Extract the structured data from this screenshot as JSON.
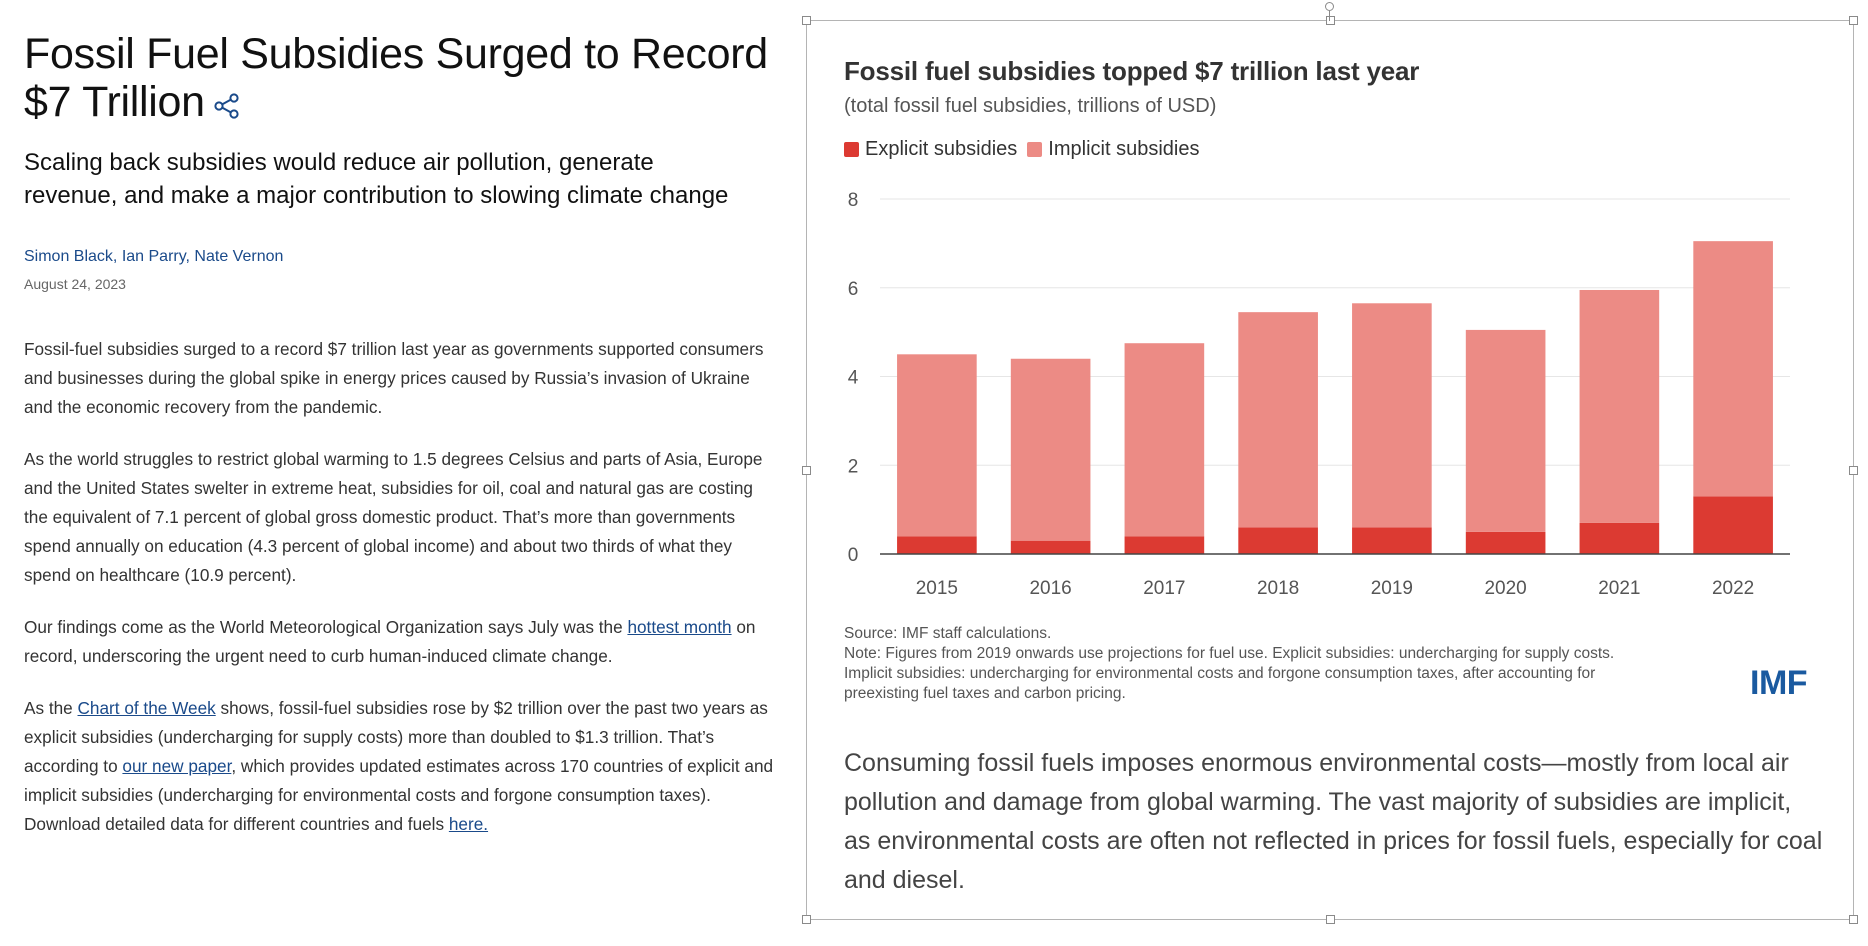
{
  "article": {
    "title": "Fossil Fuel Subsidies Surged to Record $7 Trillion",
    "subtitle": "Scaling back subsidies would reduce air pollution, generate revenue, and make a major contribution to slowing climate change",
    "authors": "Simon Black, Ian Parry, Nate Vernon",
    "date": "August 24, 2023",
    "paragraphs": {
      "p1": "Fossil-fuel subsidies surged to a record $7 trillion last year as governments supported consumers and businesses during the global spike in energy prices caused by Russia’s invasion of Ukraine and the economic recovery from the pandemic.",
      "p2": "As the world struggles to restrict global warming to 1.5 degrees Celsius and parts of Asia, Europe and the United States swelter in extreme heat, subsidies for oil, coal and natural gas are costing the equivalent of 7.1 percent of global gross domestic product. That’s more than governments spend annually on education (4.3 percent of global income) and about two thirds of what they spend on healthcare (10.9 percent).",
      "p3": {
        "before": "Our findings come as the World Meteorological Organization says July was the ",
        "link": "hottest month",
        "after": " on record, underscoring the urgent need to curb human-induced climate change."
      },
      "p4": {
        "text1": "As the ",
        "link1": "Chart of the Week",
        "text2": " shows, fossil-fuel subsidies rose by $2 trillion over the past two years as explicit subsidies (undercharging for supply costs) more than doubled to $1.3 trillion. That’s according to ",
        "link2": "our new paper",
        "text3": ", which provides updated estimates across 170 countries of explicit and implicit subsidies (undercharging for environmental costs and forgone consumption taxes). Download detailed data for different countries and fuels ",
        "link3": "here."
      }
    }
  },
  "chart_data": {
    "type": "bar",
    "stacked": true,
    "title": "Fossil fuel subsidies topped $7 trillion last year",
    "subtitle": "(total fossil fuel subsidies, trillions of USD)",
    "categories": [
      "2015",
      "2016",
      "2017",
      "2018",
      "2019",
      "2020",
      "2021",
      "2022"
    ],
    "series": [
      {
        "name": "Explicit subsidies",
        "color": "#dc3a32",
        "values": [
          0.4,
          0.3,
          0.4,
          0.6,
          0.6,
          0.5,
          0.7,
          1.3
        ]
      },
      {
        "name": "Implicit subsidies",
        "color": "#ec8b85",
        "values": [
          4.1,
          4.1,
          4.35,
          4.85,
          5.05,
          4.55,
          5.25,
          5.75
        ]
      }
    ],
    "ylim": [
      0,
      8
    ],
    "yticks": [
      0,
      2,
      4,
      6,
      8
    ],
    "grid": true,
    "legend_position": "top-left",
    "source": "Source: IMF staff calculations.",
    "note_lines": [
      "Note: Figures from 2019 onwards use projections for fuel use. Explicit subsidies: undercharging for supply costs.",
      "Implicit subsidies: undercharging for environmental costs and forgone consumption taxes, after accounting for",
      "preexisting fuel taxes and carbon pricing."
    ],
    "logo": "IMF"
  },
  "caption": "Consuming fossil fuels imposes enormous environmental costs—mostly from local air pollution and damage from global warming. The vast majority of subsidies are implicit, as environmental costs are often not reflected in prices for fossil fuels, especially for coal and diesel.",
  "colors": {
    "link": "#1a4a8a",
    "explicit": "#dc3a32",
    "implicit": "#ec8b85",
    "imf_blue": "#1a5aa0"
  }
}
